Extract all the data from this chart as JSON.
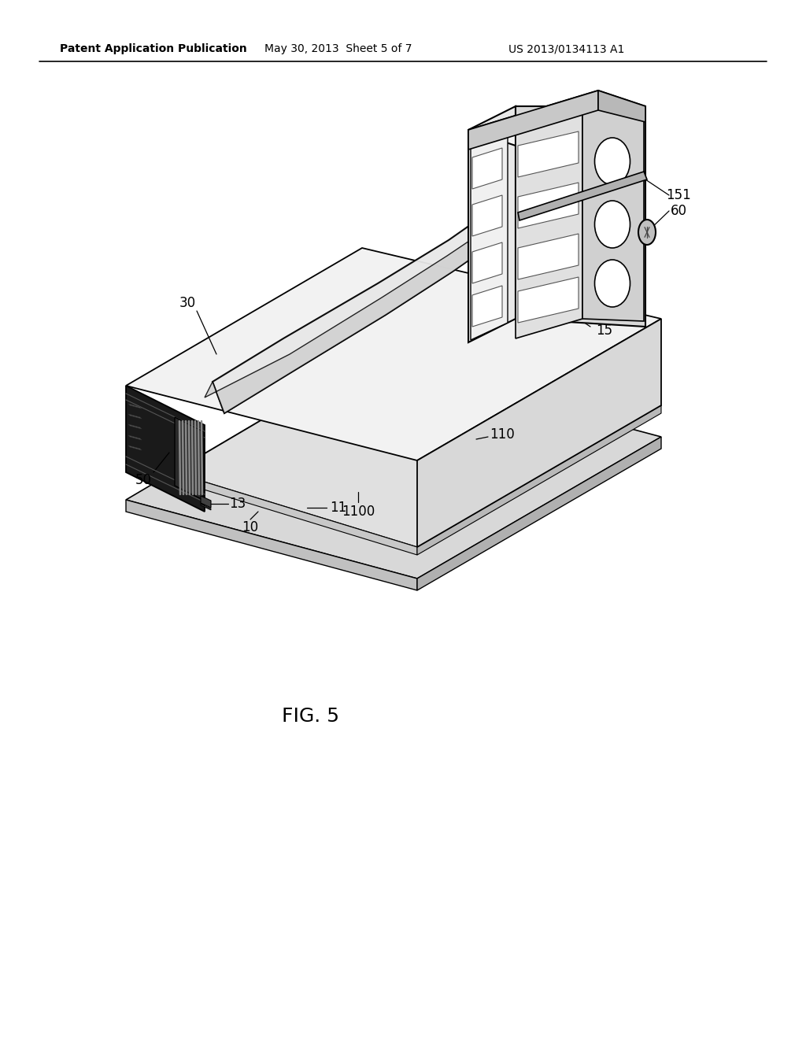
{
  "bg_color": "#ffffff",
  "header_left": "Patent Application Publication",
  "header_center": "May 30, 2013  Sheet 5 of 7",
  "header_right": "US 2013/0134113 A1",
  "figure_label": "FIG. 5",
  "line_color": "#000000",
  "fill_light": "#f0f0f0",
  "fill_mid": "#d8d8d8",
  "fill_dark": "#b0b0b0",
  "fill_darkest": "#202020"
}
